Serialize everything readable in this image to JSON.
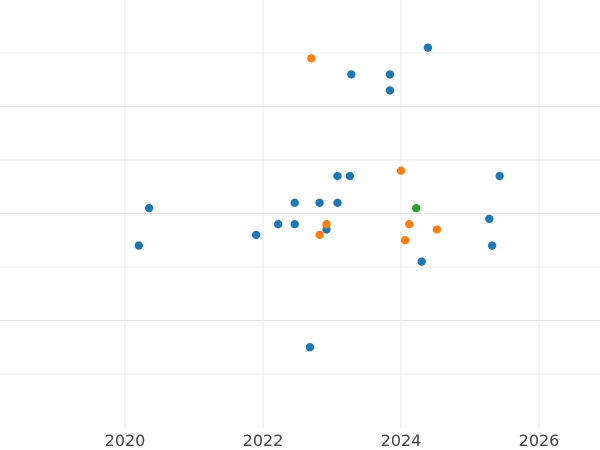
{
  "chart_data": {
    "type": "scatter",
    "title": "",
    "xlabel": "",
    "ylabel": "",
    "xlim": [
      2018.2,
      2026.9
    ],
    "ylim": [
      0.8,
      8.2
    ],
    "grid": true,
    "x_ticks": [
      2020,
      2022,
      2024,
      2026
    ],
    "x_tick_labels": [
      "2020",
      "2022",
      "2024",
      "2026"
    ],
    "y_ticks": [
      1,
      2,
      3,
      4,
      5,
      6,
      7,
      8
    ],
    "series": [
      {
        "color": "#1f77b4",
        "points": [
          {
            "x": 2020.2,
            "y": 3.4
          },
          {
            "x": 2020.35,
            "y": 4.1
          },
          {
            "x": 2021.9,
            "y": 3.6
          },
          {
            "x": 2022.22,
            "y": 3.8
          },
          {
            "x": 2022.46,
            "y": 3.8
          },
          {
            "x": 2022.46,
            "y": 4.2
          },
          {
            "x": 2022.68,
            "y": 1.5
          },
          {
            "x": 2022.82,
            "y": 4.2
          },
          {
            "x": 2022.92,
            "y": 3.7
          },
          {
            "x": 2023.08,
            "y": 4.2
          },
          {
            "x": 2023.08,
            "y": 4.7
          },
          {
            "x": 2023.26,
            "y": 4.7
          },
          {
            "x": 2023.28,
            "y": 6.6
          },
          {
            "x": 2023.84,
            "y": 6.6
          },
          {
            "x": 2023.84,
            "y": 6.3
          },
          {
            "x": 2024.3,
            "y": 3.1
          },
          {
            "x": 2024.37,
            "y": 8.4
          },
          {
            "x": 2024.39,
            "y": 7.1
          },
          {
            "x": 2025.28,
            "y": 3.9
          },
          {
            "x": 2025.32,
            "y": 3.4
          },
          {
            "x": 2025.43,
            "y": 4.7
          }
        ]
      },
      {
        "color": "#ff7f0e",
        "points": [
          {
            "x": 2022.7,
            "y": 6.9
          },
          {
            "x": 2022.82,
            "y": 3.6
          },
          {
            "x": 2022.92,
            "y": 3.8
          },
          {
            "x": 2024.0,
            "y": 4.8
          },
          {
            "x": 2024.06,
            "y": 3.5
          },
          {
            "x": 2024.12,
            "y": 3.8
          },
          {
            "x": 2024.52,
            "y": 3.7
          }
        ]
      },
      {
        "color": "#2ca02c",
        "points": [
          {
            "x": 2024.22,
            "y": 4.1
          }
        ]
      }
    ]
  }
}
